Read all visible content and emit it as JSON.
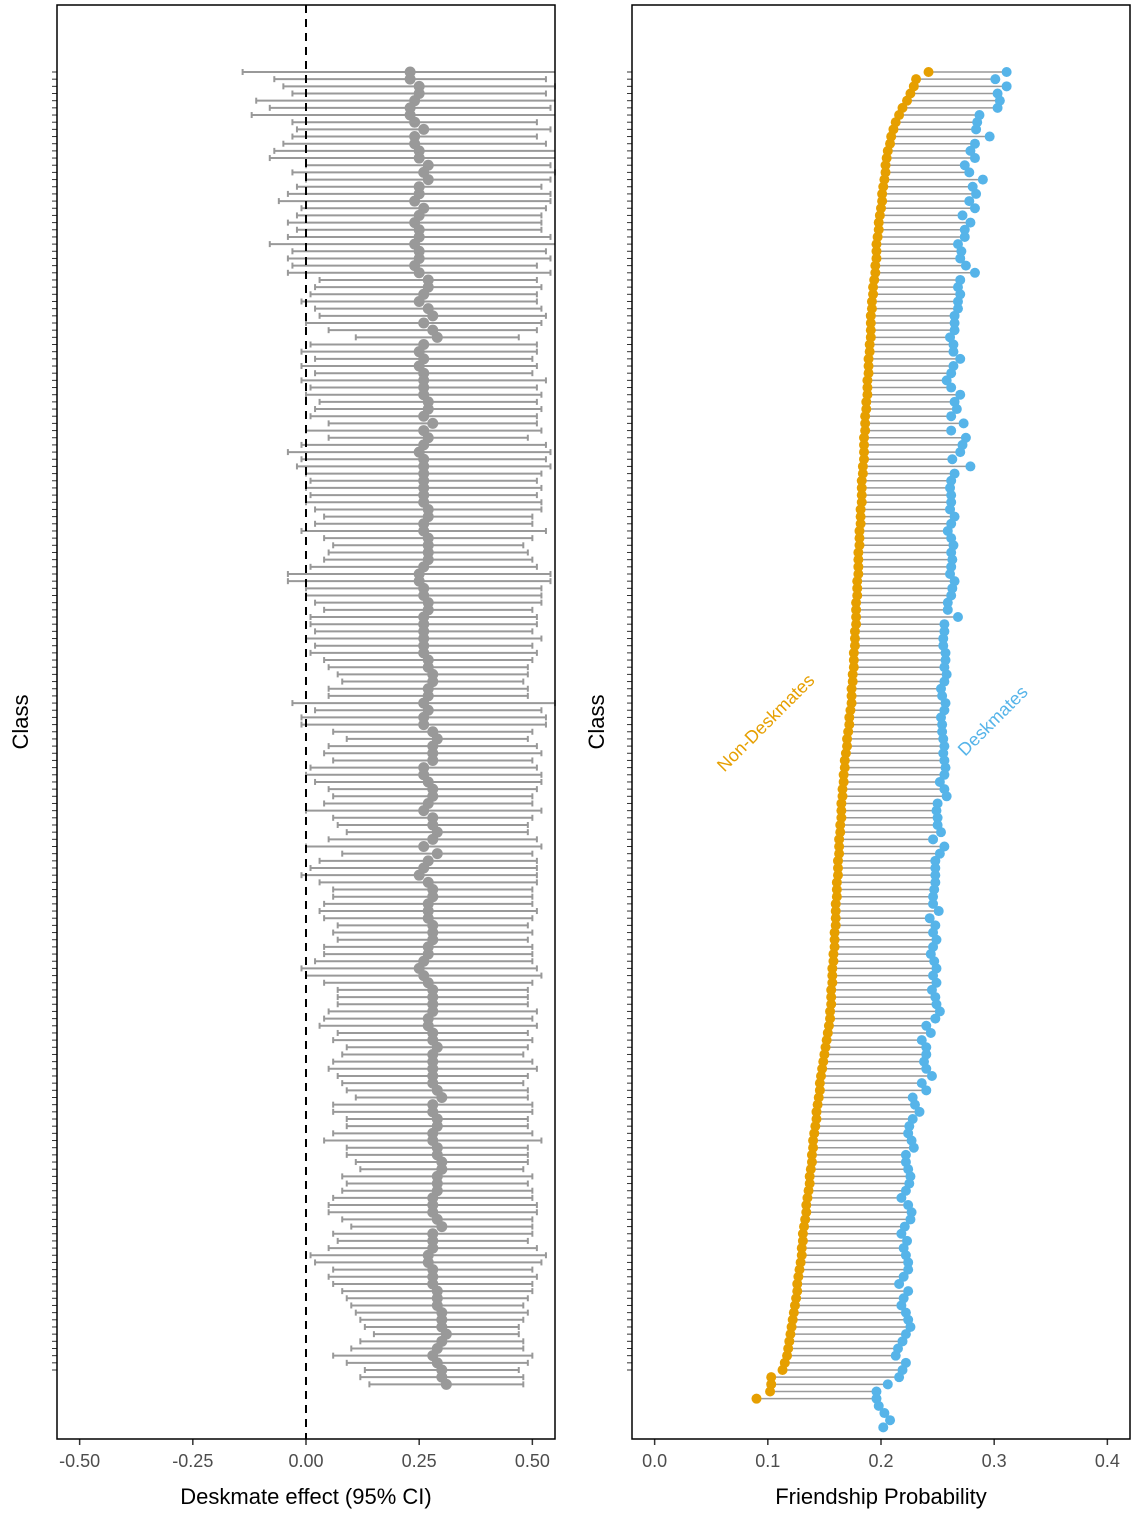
{
  "colors": {
    "effect_point": "#999999",
    "non_deskmates": "#E69F00",
    "deskmates": "#56B4E9",
    "segment": "#999999"
  },
  "chart_data": [
    {
      "type": "forest",
      "xlabel": "Deskmate effect (95% CI)",
      "ylabel": "Class",
      "xlim": [
        -0.55,
        0.55
      ],
      "x_ticks": [
        -0.5,
        -0.25,
        0.0,
        0.25,
        0.5
      ],
      "x_tick_labels": [
        "-0.50",
        "-0.25",
        "0.00",
        "0.25",
        "0.50"
      ],
      "reference_line": 0.0,
      "n_classes": 182,
      "estimates_top_to_bottom": [
        0.23,
        0.23,
        0.25,
        0.25,
        0.24,
        0.23,
        0.23,
        0.24,
        0.26,
        0.24,
        0.24,
        0.25,
        0.25,
        0.27,
        0.26,
        0.27,
        0.25,
        0.25,
        0.24,
        0.26,
        0.25,
        0.24,
        0.25,
        0.25,
        0.24,
        0.25,
        0.25,
        0.24,
        0.25,
        0.27,
        0.27,
        0.26,
        0.25,
        0.27,
        0.28,
        0.26,
        0.28,
        0.29,
        0.26,
        0.25,
        0.26,
        0.25,
        0.26,
        0.26,
        0.26,
        0.26,
        0.27,
        0.27,
        0.26,
        0.28,
        0.26,
        0.27,
        0.26,
        0.25,
        0.26,
        0.26,
        0.26,
        0.26,
        0.26,
        0.26,
        0.26,
        0.27,
        0.27,
        0.26,
        0.26,
        0.27,
        0.27,
        0.27,
        0.27,
        0.26,
        0.25,
        0.25,
        0.26,
        0.26,
        0.27,
        0.27,
        0.26,
        0.26,
        0.26,
        0.26,
        0.26,
        0.26,
        0.27,
        0.27,
        0.28,
        0.28,
        0.27,
        0.27,
        0.26,
        0.27,
        0.26,
        0.26,
        0.28,
        0.29,
        0.28,
        0.28,
        0.28,
        0.26,
        0.26,
        0.27,
        0.28,
        0.28,
        0.27,
        0.26,
        0.28,
        0.28,
        0.29,
        0.28,
        0.26,
        0.29,
        0.27,
        0.26,
        0.25,
        0.27,
        0.28,
        0.28,
        0.27,
        0.27,
        0.27,
        0.28,
        0.28,
        0.28,
        0.27,
        0.27,
        0.26,
        0.25,
        0.26,
        0.27,
        0.28,
        0.28,
        0.28,
        0.28,
        0.27,
        0.27,
        0.28,
        0.28,
        0.29,
        0.28,
        0.28,
        0.28,
        0.28,
        0.28,
        0.29,
        0.3,
        0.28,
        0.28,
        0.29,
        0.29,
        0.28,
        0.28,
        0.29,
        0.29,
        0.3,
        0.3,
        0.29,
        0.29,
        0.29,
        0.28,
        0.28,
        0.28,
        0.29,
        0.3,
        0.28,
        0.28,
        0.28,
        0.27,
        0.27,
        0.28,
        0.28,
        0.28,
        0.29,
        0.29,
        0.29,
        0.3,
        0.3,
        0.3,
        0.31,
        0.3,
        0.29,
        0.28,
        0.29,
        0.3,
        0.3,
        0.31
      ],
      "ci_lower_top_to_bottom": [
        -0.14,
        -0.07,
        -0.05,
        -0.03,
        -0.11,
        -0.08,
        -0.12,
        -0.03,
        -0.02,
        -0.03,
        -0.05,
        -0.07,
        -0.08,
        0.0,
        -0.03,
        0.0,
        -0.02,
        -0.04,
        -0.06,
        -0.01,
        -0.02,
        -0.04,
        -0.02,
        -0.04,
        -0.08,
        -0.03,
        -0.04,
        -0.03,
        -0.04,
        0.03,
        0.02,
        0.01,
        -0.01,
        0.02,
        0.03,
        0.0,
        0.05,
        0.11,
        0.01,
        -0.01,
        0.02,
        -0.01,
        0.02,
        -0.01,
        0.01,
        0.0,
        0.03,
        0.02,
        0.01,
        0.05,
        0.0,
        0.05,
        -0.01,
        -0.04,
        -0.01,
        -0.02,
        0.0,
        0.01,
        0.0,
        0.01,
        0.0,
        0.02,
        0.04,
        0.02,
        -0.01,
        0.04,
        0.06,
        0.05,
        0.04,
        0.01,
        -0.04,
        -0.04,
        0.0,
        0.0,
        0.02,
        0.04,
        0.01,
        0.01,
        0.02,
        0.0,
        0.02,
        0.01,
        0.04,
        0.05,
        0.07,
        0.08,
        0.05,
        0.05,
        -0.03,
        0.02,
        -0.01,
        -0.01,
        0.06,
        0.09,
        0.05,
        0.04,
        0.06,
        0.01,
        0.0,
        0.02,
        0.05,
        0.06,
        0.04,
        0.0,
        0.06,
        0.07,
        0.09,
        0.05,
        0.0,
        0.08,
        0.03,
        0.01,
        -0.01,
        0.03,
        0.06,
        0.06,
        0.04,
        0.03,
        0.04,
        0.07,
        0.06,
        0.07,
        0.04,
        0.04,
        0.02,
        -0.01,
        0.0,
        0.04,
        0.07,
        0.07,
        0.07,
        0.05,
        0.04,
        0.03,
        0.07,
        0.06,
        0.09,
        0.08,
        0.06,
        0.05,
        0.07,
        0.08,
        0.09,
        0.11,
        0.06,
        0.06,
        0.09,
        0.09,
        0.06,
        0.04,
        0.09,
        0.09,
        0.11,
        0.12,
        0.08,
        0.09,
        0.08,
        0.06,
        0.05,
        0.05,
        0.08,
        0.1,
        0.06,
        0.07,
        0.05,
        0.01,
        0.02,
        0.06,
        0.05,
        0.06,
        0.08,
        0.09,
        0.1,
        0.11,
        0.12,
        0.13,
        0.15,
        0.12,
        0.1,
        0.06,
        0.09,
        0.13,
        0.12,
        0.14
      ]
    },
    {
      "type": "dumbbell",
      "xlabel": "Friendship Probability",
      "ylabel": "Class",
      "xlim": [
        -0.02,
        0.42
      ],
      "x_ticks": [
        0.0,
        0.1,
        0.2,
        0.3,
        0.4
      ],
      "x_tick_labels": [
        "0.0",
        "0.1",
        "0.2",
        "0.3",
        "0.4"
      ],
      "series_labels": [
        "Non-Deskmates",
        "Deskmates"
      ],
      "n_classes": 182,
      "non_deskmates_top_to_bottom": [
        0.242,
        0.231,
        0.229,
        0.226,
        0.223,
        0.219,
        0.216,
        0.213,
        0.211,
        0.209,
        0.208,
        0.206,
        0.205,
        0.204,
        0.204,
        0.203,
        0.202,
        0.201,
        0.201,
        0.2,
        0.199,
        0.198,
        0.198,
        0.197,
        0.196,
        0.196,
        0.196,
        0.195,
        0.195,
        0.194,
        0.193,
        0.193,
        0.192,
        0.192,
        0.191,
        0.191,
        0.191,
        0.191,
        0.19,
        0.19,
        0.189,
        0.189,
        0.189,
        0.188,
        0.188,
        0.188,
        0.187,
        0.187,
        0.186,
        0.186,
        0.186,
        0.185,
        0.185,
        0.185,
        0.185,
        0.184,
        0.184,
        0.183,
        0.183,
        0.183,
        0.183,
        0.182,
        0.182,
        0.182,
        0.181,
        0.181,
        0.181,
        0.18,
        0.18,
        0.18,
        0.18,
        0.179,
        0.179,
        0.179,
        0.178,
        0.178,
        0.178,
        0.178,
        0.177,
        0.177,
        0.177,
        0.176,
        0.176,
        0.176,
        0.175,
        0.175,
        0.174,
        0.174,
        0.174,
        0.173,
        0.172,
        0.172,
        0.171,
        0.17,
        0.17,
        0.169,
        0.168,
        0.168,
        0.167,
        0.167,
        0.166,
        0.166,
        0.165,
        0.165,
        0.165,
        0.164,
        0.164,
        0.163,
        0.163,
        0.163,
        0.162,
        0.162,
        0.162,
        0.161,
        0.161,
        0.161,
        0.16,
        0.16,
        0.16,
        0.16,
        0.159,
        0.159,
        0.159,
        0.158,
        0.158,
        0.157,
        0.157,
        0.157,
        0.156,
        0.156,
        0.156,
        0.155,
        0.155,
        0.154,
        0.153,
        0.152,
        0.151,
        0.15,
        0.149,
        0.148,
        0.147,
        0.146,
        0.146,
        0.145,
        0.144,
        0.143,
        0.143,
        0.142,
        0.141,
        0.14,
        0.14,
        0.139,
        0.139,
        0.138,
        0.137,
        0.137,
        0.136,
        0.135,
        0.134,
        0.134,
        0.133,
        0.132,
        0.131,
        0.131,
        0.13,
        0.13,
        0.129,
        0.128,
        0.127,
        0.126,
        0.126,
        0.125,
        0.124,
        0.123,
        0.122,
        0.121,
        0.12,
        0.119,
        0.118,
        0.117,
        0.115,
        0.113,
        0.103,
        0.103,
        0.102,
        0.09
      ],
      "deskmates_top_to_bottom": [
        0.311,
        0.301,
        0.311,
        0.303,
        0.305,
        0.303,
        0.287,
        0.285,
        0.284,
        0.296,
        0.283,
        0.279,
        0.283,
        0.274,
        0.278,
        0.29,
        0.281,
        0.284,
        0.278,
        0.283,
        0.272,
        0.279,
        0.274,
        0.274,
        0.268,
        0.271,
        0.27,
        0.275,
        0.283,
        0.27,
        0.268,
        0.27,
        0.268,
        0.268,
        0.265,
        0.265,
        0.265,
        0.261,
        0.264,
        0.264,
        0.27,
        0.264,
        0.262,
        0.258,
        0.262,
        0.27,
        0.265,
        0.267,
        0.262,
        0.273,
        0.262,
        0.275,
        0.272,
        0.27,
        0.263,
        0.279,
        0.265,
        0.262,
        0.261,
        0.262,
        0.262,
        0.261,
        0.265,
        0.262,
        0.259,
        0.262,
        0.264,
        0.262,
        0.263,
        0.262,
        0.261,
        0.265,
        0.263,
        0.262,
        0.259,
        0.259,
        0.268,
        0.256,
        0.256,
        0.255,
        0.255,
        0.257,
        0.257,
        0.256,
        0.258,
        0.256,
        0.253,
        0.254,
        0.257,
        0.256,
        0.253,
        0.254,
        0.254,
        0.255,
        0.256,
        0.255,
        0.256,
        0.257,
        0.256,
        0.252,
        0.256,
        0.258,
        0.25,
        0.249,
        0.25,
        0.25,
        0.253,
        0.246,
        0.256,
        0.252,
        0.248,
        0.248,
        0.248,
        0.248,
        0.247,
        0.246,
        0.246,
        0.251,
        0.243,
        0.248,
        0.246,
        0.249,
        0.246,
        0.244,
        0.247,
        0.249,
        0.246,
        0.249,
        0.245,
        0.248,
        0.249,
        0.252,
        0.248,
        0.24,
        0.244,
        0.236,
        0.24,
        0.24,
        0.238,
        0.24,
        0.245,
        0.236,
        0.24,
        0.228,
        0.23,
        0.234,
        0.228,
        0.225,
        0.224,
        0.227,
        0.229,
        0.222,
        0.222,
        0.224,
        0.226,
        0.225,
        0.222,
        0.218,
        0.224,
        0.227,
        0.226,
        0.221,
        0.218,
        0.223,
        0.22,
        0.222,
        0.224,
        0.224,
        0.22,
        0.216,
        0.224,
        0.22,
        0.218,
        0.222,
        0.224,
        0.226,
        0.222,
        0.219,
        0.215,
        0.213,
        0.222,
        0.219,
        0.216,
        0.206,
        0.196,
        0.196,
        0.198,
        0.203,
        0.208,
        0.202
      ]
    }
  ]
}
